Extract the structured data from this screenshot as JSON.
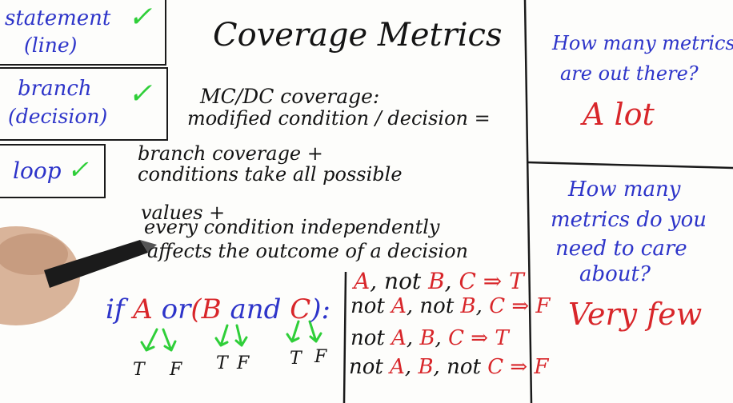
{
  "left_list": {
    "items": [
      {
        "label_line1": "statement",
        "label_line2": "(line)",
        "check": "✓"
      },
      {
        "label_line1": "branch",
        "label_line2": "(decision)",
        "check": "✓"
      },
      {
        "label_line1": "loop",
        "check": "✓"
      }
    ]
  },
  "title": "Coverage Metrics",
  "definition": {
    "line1": "MC/DC coverage:",
    "line2": "modified condition / decision =",
    "line3": "branch coverage +",
    "line4": "conditions take all possible",
    "line5": "values +",
    "line6": "every condition independently",
    "line7": "affects the outcome of a decision"
  },
  "expression": {
    "if": "if",
    "A": "A",
    "or": "or",
    "open_paren": "(",
    "B": "B",
    "and": "and",
    "C": "C",
    "close": "):",
    "tf_pairs": [
      [
        "T",
        "F"
      ],
      [
        "T",
        "F"
      ],
      [
        "T",
        "F"
      ]
    ]
  },
  "cases": [
    {
      "p1": "",
      "a": "A",
      "p2": ", not ",
      "b": "B",
      "p3": ", ",
      "c": "C",
      "p4": " ⇒ ",
      "out": "T"
    },
    {
      "p1": "not ",
      "a": "A",
      "p2": ", not ",
      "b": "B",
      "p3": ", ",
      "c": "C",
      "p4": " ⇒ ",
      "out": "F"
    },
    {
      "p1": "not ",
      "a": "A",
      "p2": ", ",
      "b": "B",
      "p3": ", ",
      "c": "C",
      "p4": " ⇒ ",
      "out": "T"
    },
    {
      "p1": "not ",
      "a": "A",
      "p2": ", ",
      "b": "B",
      "p3": ", not ",
      "c": "C",
      "p4": " ⇒ ",
      "out": "F"
    }
  ],
  "right_panel": {
    "q1_line1": "How many metrics",
    "q1_line2": "are out there?",
    "a1": "A lot",
    "q2_line1": "How many",
    "q2_line2": "metrics do you",
    "q2_line3": "need to care",
    "q2_line4": "about?",
    "a2": "Very few"
  },
  "colors": {
    "ink": "#141414",
    "blue": "#2d34c9",
    "red": "#d8262a",
    "green": "#2fcf39"
  }
}
